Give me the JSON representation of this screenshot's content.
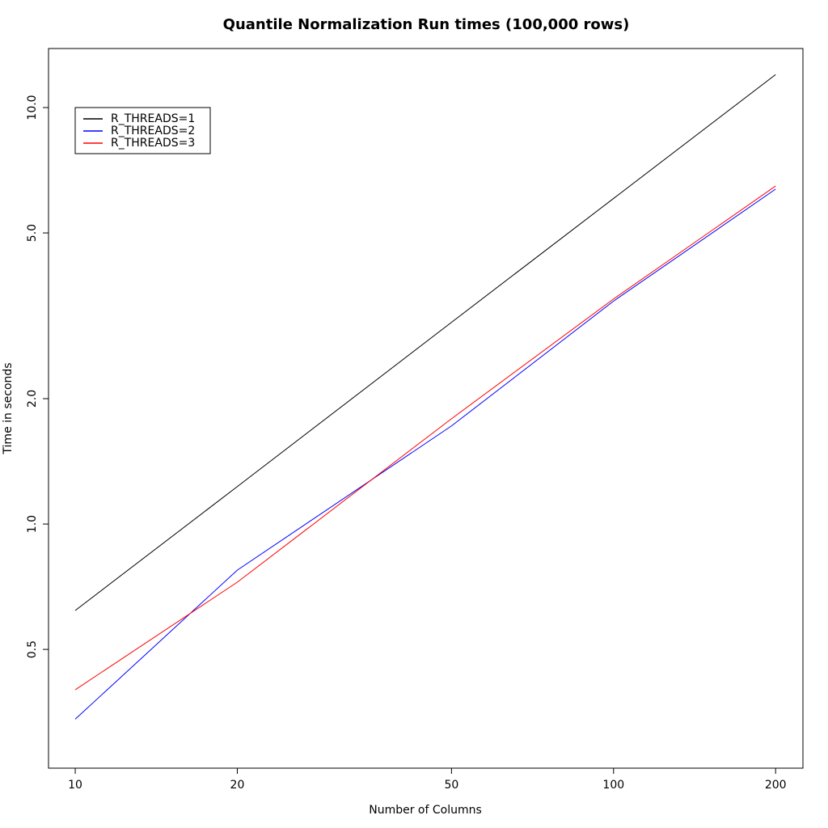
{
  "chart_data": {
    "type": "line",
    "title": "Quantile Normalization Run times (100,000 rows)",
    "x_label": "Number of Columns",
    "y_label": "Time in seconds",
    "x": [
      10,
      20,
      50,
      100,
      200
    ],
    "series": [
      {
        "name": "R_THREADS=1",
        "color": "#000000",
        "values": [
          0.62,
          1.23,
          3.05,
          6.05,
          12.0
        ]
      },
      {
        "name": "R_THREADS=2",
        "color": "#0000ff",
        "values": [
          0.34,
          0.775,
          1.72,
          3.43,
          6.37
        ]
      },
      {
        "name": "R_THREADS=3",
        "color": "#ff0000",
        "values": [
          0.4,
          0.725,
          1.79,
          3.47,
          6.48
        ]
      }
    ],
    "xlog": true,
    "ylog": true,
    "xlim": [
      8.92,
      224.8
    ],
    "ylim": [
      0.2593,
      13.86
    ],
    "xticks": [
      10,
      20,
      50,
      100,
      200
    ],
    "yticks": [
      0.5,
      {
        "value": 1,
        "label": "1.0"
      },
      {
        "value": 2,
        "label": "2.0"
      },
      {
        "value": 5,
        "label": "5.0"
      },
      {
        "value": 10,
        "label": "10.0"
      }
    ],
    "grid": false,
    "legend": "top-left"
  }
}
